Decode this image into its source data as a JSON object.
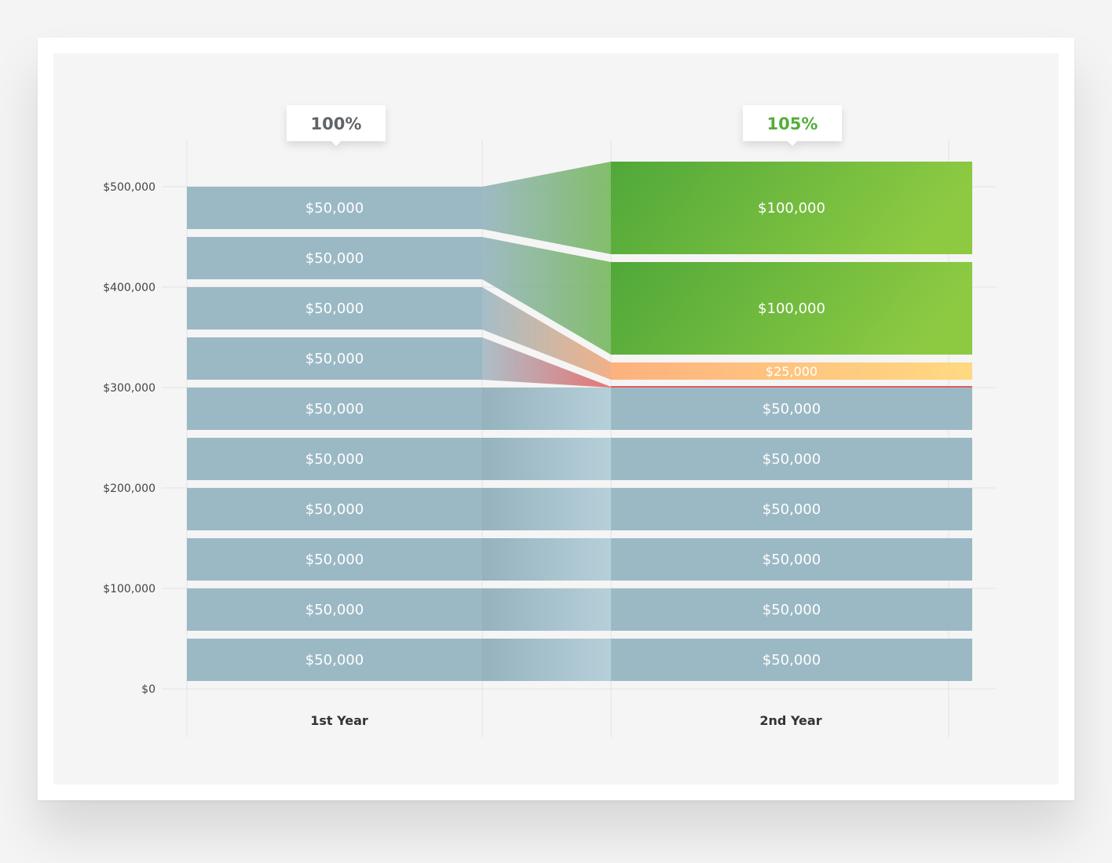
{
  "chart_data": {
    "type": "bar",
    "layout": "stacked comparison with flow connectors",
    "categories": [
      "1st Year",
      "2nd Year"
    ],
    "ylim": [
      0,
      500000
    ],
    "yticks": [
      {
        "value": 0,
        "label": "$0"
      },
      {
        "value": 100000,
        "label": "$100,000"
      },
      {
        "value": 200000,
        "label": "$200,000"
      },
      {
        "value": 300000,
        "label": "$300,000"
      },
      {
        "value": 400000,
        "label": "$400,000"
      },
      {
        "value": 500000,
        "label": "$500,000"
      }
    ],
    "grid": true,
    "callouts": [
      {
        "category": "1st Year",
        "label": "100%",
        "color": "#5f6468"
      },
      {
        "category": "2nd Year",
        "label": "105%",
        "color": "#55ad3b"
      }
    ],
    "stacks": [
      {
        "category": "1st Year",
        "segments": [
          {
            "value": 50000,
            "label": "$50,000",
            "kind": "base"
          },
          {
            "value": 50000,
            "label": "$50,000",
            "kind": "base"
          },
          {
            "value": 50000,
            "label": "$50,000",
            "kind": "base"
          },
          {
            "value": 50000,
            "label": "$50,000",
            "kind": "base"
          },
          {
            "value": 50000,
            "label": "$50,000",
            "kind": "base"
          },
          {
            "value": 50000,
            "label": "$50,000",
            "kind": "base"
          },
          {
            "value": 50000,
            "label": "$50,000",
            "kind": "base"
          },
          {
            "value": 50000,
            "label": "$50,000",
            "kind": "base"
          },
          {
            "value": 50000,
            "label": "$50,000",
            "kind": "base"
          },
          {
            "value": 50000,
            "label": "$50,000",
            "kind": "base"
          }
        ]
      },
      {
        "category": "2nd Year",
        "segments": [
          {
            "value": 50000,
            "label": "$50,000",
            "kind": "base"
          },
          {
            "value": 50000,
            "label": "$50,000",
            "kind": "base"
          },
          {
            "value": 50000,
            "label": "$50,000",
            "kind": "base"
          },
          {
            "value": 50000,
            "label": "$50,000",
            "kind": "base"
          },
          {
            "value": 50000,
            "label": "$50,000",
            "kind": "base"
          },
          {
            "value": 50000,
            "label": "$50,000",
            "kind": "base"
          },
          {
            "value": 0,
            "label": "",
            "kind": "loss"
          },
          {
            "value": 25000,
            "label": "$25,000",
            "kind": "partial"
          },
          {
            "value": 100000,
            "label": "$100,000",
            "kind": "gain"
          },
          {
            "value": 100000,
            "label": "$100,000",
            "kind": "gain"
          }
        ]
      }
    ],
    "colors": {
      "base": "#9bb9c4",
      "base_connector_light": "#b4cfd9",
      "gain_dark": "#50a83a",
      "gain_light": "#8dca42",
      "partial_left": "#fdb17e",
      "partial_right": "#ffd981",
      "loss": "#e55d5d",
      "grid": "#e2e2e2"
    }
  }
}
